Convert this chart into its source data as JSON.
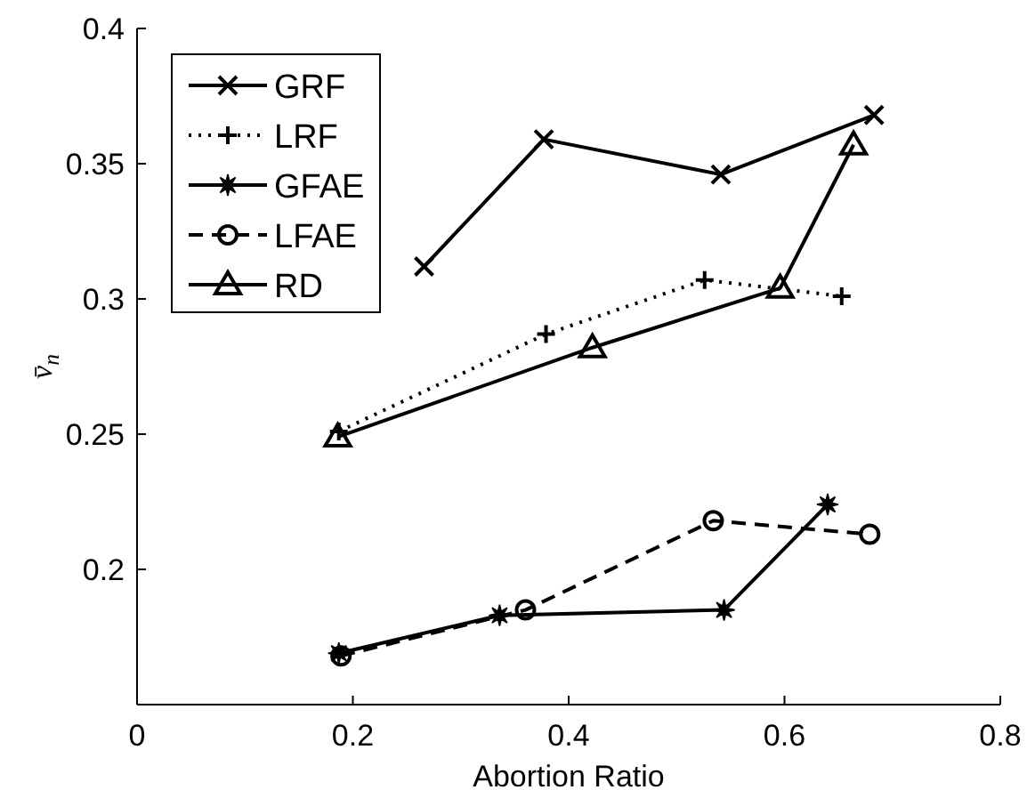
{
  "chart_data": {
    "type": "line",
    "xlabel": "Abortion Ratio",
    "ylabel": "v̄$_{n}$",
    "xlim": [
      0,
      0.8
    ],
    "xticks": [
      0,
      0.2,
      0.4,
      0.6,
      0.8
    ],
    "ylim": [
      0.15,
      0.4
    ],
    "yticks": [
      0.2,
      0.25,
      0.3,
      0.35,
      0.4
    ],
    "grid": false,
    "legend": "top left",
    "series": [
      {
        "name": "GRF",
        "color": "#000000",
        "marker": "cross",
        "line_style": "solid",
        "x": [
          0.266,
          0.377,
          0.541,
          0.683
        ],
        "values": [
          0.312,
          0.359,
          0.346,
          0.368
        ]
      },
      {
        "name": "LRF",
        "color": "#000000",
        "marker": "plus",
        "line_style": "dotted",
        "x": [
          0.187,
          0.379,
          0.526,
          0.653
        ],
        "values": [
          0.251,
          0.287,
          0.307,
          0.301
        ]
      },
      {
        "name": "GFAE",
        "color": "#000000",
        "marker": "star",
        "line_style": "solid",
        "x": [
          0.187,
          0.336,
          0.544,
          0.64
        ],
        "values": [
          0.169,
          0.183,
          0.185,
          0.224
        ]
      },
      {
        "name": "LFAE",
        "color": "#000000",
        "marker": "circle",
        "line_style": "dashed",
        "x": [
          0.189,
          0.36,
          0.534,
          0.679
        ],
        "values": [
          0.168,
          0.185,
          0.218,
          0.213
        ]
      },
      {
        "name": "RD",
        "color": "#000000",
        "marker": "triangle",
        "line_style": "solid",
        "x": [
          0.186,
          0.422,
          0.596,
          0.664
        ],
        "values": [
          0.249,
          0.282,
          0.304,
          0.357
        ]
      }
    ]
  }
}
